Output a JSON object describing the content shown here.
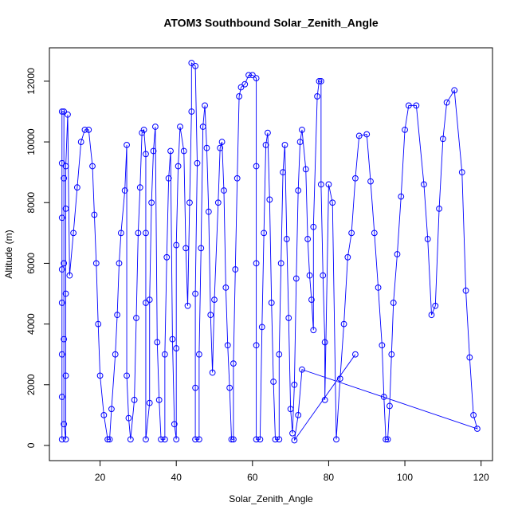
{
  "chart_data": {
    "type": "scatter",
    "title": "ATOM3 Southbound Solar_Zenith_Angle",
    "x_label": "Solar_Zenith_Angle",
    "y_label": "Altitude (m)",
    "xlim": [
      6.7,
      123
    ],
    "ylim": [
      -500,
      13100
    ],
    "xticks": [
      20,
      40,
      60,
      80,
      100,
      120
    ],
    "yticks": [
      0,
      2000,
      4000,
      6000,
      8000,
      10000,
      12000
    ],
    "grid": false,
    "series": [
      {
        "color": "#0000ff",
        "x": [
          10,
          10,
          10,
          10,
          10,
          10,
          10,
          10,
          10.5,
          10.5,
          10.5,
          10.5,
          10.5,
          11,
          11,
          11,
          11,
          11,
          11.5,
          12,
          13,
          14,
          15,
          16,
          17,
          18,
          18.5,
          19,
          19.5,
          20,
          21,
          22,
          22.5,
          23,
          24,
          24.5,
          25,
          25.5,
          26.5,
          27,
          27,
          27.5,
          28,
          29,
          29.5,
          30,
          30.5,
          31,
          31.5,
          32,
          32,
          32,
          32,
          33,
          33,
          33.5,
          34,
          34.5,
          35,
          35.5,
          36,
          37,
          37,
          37.5,
          38,
          38.5,
          39,
          39.5,
          40,
          40,
          40,
          40.5,
          41,
          42,
          42.5,
          43,
          43.5,
          44,
          44,
          45,
          45.5,
          45,
          45,
          45,
          46,
          46,
          46.5,
          47,
          47.5,
          48,
          48.5,
          49,
          49.5,
          50,
          51,
          51.5,
          52,
          52.5,
          53,
          53.5,
          54,
          54.5,
          55,
          55,
          55.5,
          56,
          56.5,
          57,
          58,
          59,
          60,
          61,
          61,
          61,
          61,
          61,
          62,
          62.5,
          63,
          63.5,
          64,
          64.5,
          65,
          65.5,
          66,
          67,
          67,
          67.5,
          68,
          68.5,
          69,
          69.5,
          70,
          70.5,
          71,
          71.5,
          72,
          72.5,
          73,
          74,
          74.5,
          75,
          75.5,
          76,
          76,
          77,
          77.5,
          78,
          78,
          78.5,
          79,
          79,
          80,
          81,
          82,
          83,
          84,
          85,
          86,
          87,
          88,
          90,
          91,
          92,
          93,
          94,
          94.5,
          95,
          95.5,
          96,
          96.5,
          97,
          98,
          99,
          100,
          101,
          103,
          105,
          106,
          107,
          108,
          109,
          110,
          111,
          113,
          115,
          116,
          117,
          118,
          119,
          73,
          72,
          71,
          87
        ],
        "values": [
          200,
          1600,
          3000,
          4700,
          5800,
          7500,
          9300,
          11000,
          11000,
          8800,
          6000,
          3500,
          700,
          200,
          2300,
          5000,
          7800,
          9200,
          10900,
          5600,
          7000,
          8500,
          10000,
          10400,
          10400,
          9200,
          7600,
          6000,
          4000,
          2300,
          1000,
          200,
          200,
          1200,
          3000,
          4300,
          6000,
          7000,
          8400,
          9900,
          2300,
          900,
          200,
          1500,
          4200,
          7000,
          8500,
          10300,
          10400,
          9600,
          7000,
          4700,
          200,
          1400,
          4800,
          8000,
          9700,
          10500,
          3400,
          1500,
          200,
          200,
          3000,
          6200,
          8800,
          9700,
          3500,
          700,
          200,
          3200,
          6600,
          9200,
          10500,
          9700,
          6500,
          4600,
          8000,
          11000,
          12600,
          12500,
          9300,
          5000,
          1900,
          200,
          200,
          3000,
          6500,
          10500,
          11200,
          9800,
          7700,
          4300,
          2400,
          4800,
          8000,
          9800,
          10000,
          8400,
          5200,
          3300,
          1900,
          200,
          200,
          2700,
          5800,
          8800,
          11500,
          11800,
          11900,
          12200,
          12200,
          12100,
          9200,
          6000,
          3300,
          200,
          200,
          3900,
          7000,
          9900,
          10300,
          8100,
          4700,
          2100,
          200,
          200,
          3000,
          6000,
          9000,
          9900,
          6800,
          4200,
          1200,
          400,
          2000,
          5500,
          8400,
          10000,
          10400,
          9100,
          6800,
          5600,
          4800,
          3800,
          7200,
          11500,
          12000,
          12000,
          8600,
          5600,
          3400,
          1500,
          8600,
          8000,
          200,
          2200,
          4000,
          6200,
          7000,
          8800,
          10200,
          10250,
          8700,
          7000,
          5200,
          3300,
          1600,
          200,
          200,
          1300,
          3000,
          4700,
          6300,
          8200,
          10400,
          11200,
          11200,
          8600,
          6800,
          4300,
          4600,
          7800,
          10100,
          11300,
          11700,
          9000,
          5100,
          2900,
          1000,
          550,
          2500,
          1000,
          170,
          3000
        ]
      }
    ]
  }
}
